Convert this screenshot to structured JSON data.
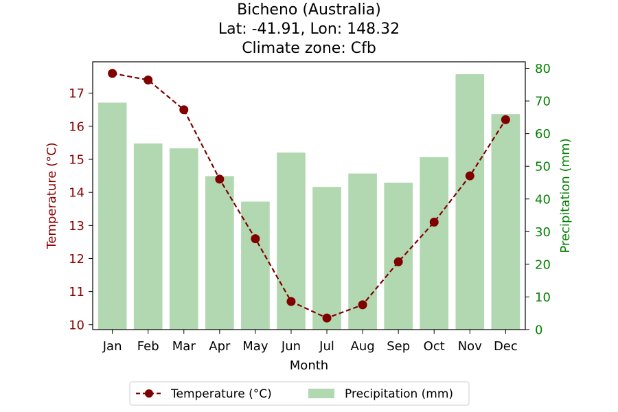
{
  "chart_data": {
    "type": "bar+line",
    "title_lines": [
      "Bicheno (Australia)",
      "Lat: -41.91, Lon: 148.32",
      "Climate zone: Cfb"
    ],
    "xlabel": "Month",
    "ylabel_left": "Temperature (°C)",
    "ylabel_right": "Precipitation (mm)",
    "categories": [
      "Jan",
      "Feb",
      "Mar",
      "Apr",
      "May",
      "Jun",
      "Jul",
      "Aug",
      "Sep",
      "Oct",
      "Nov",
      "Dec"
    ],
    "series": [
      {
        "name": "Temperature (°C)",
        "type": "line",
        "axis": "left",
        "values": [
          17.6,
          17.4,
          16.5,
          14.4,
          12.6,
          10.7,
          10.2,
          10.6,
          11.9,
          13.1,
          14.5,
          16.2
        ]
      },
      {
        "name": "Precipitation (mm)",
        "type": "bar",
        "axis": "right",
        "values": [
          69.5,
          57.0,
          55.5,
          47.0,
          39.2,
          54.2,
          43.7,
          47.8,
          45.0,
          52.8,
          78.2,
          66.0
        ]
      }
    ],
    "y_left": {
      "min": 9.85,
      "max": 17.95,
      "ticks": [
        10,
        11,
        12,
        13,
        14,
        15,
        16,
        17
      ]
    },
    "y_right": {
      "min": 0,
      "max": 82,
      "ticks": [
        0,
        10,
        20,
        30,
        40,
        50,
        60,
        70,
        80
      ]
    },
    "legend_position": "bottom-center",
    "colors": {
      "temperature": "#800000",
      "precipitation": "#b2d8b2",
      "left_axis": "#8b0000",
      "right_axis": "#008000",
      "frame": "#000000"
    }
  }
}
